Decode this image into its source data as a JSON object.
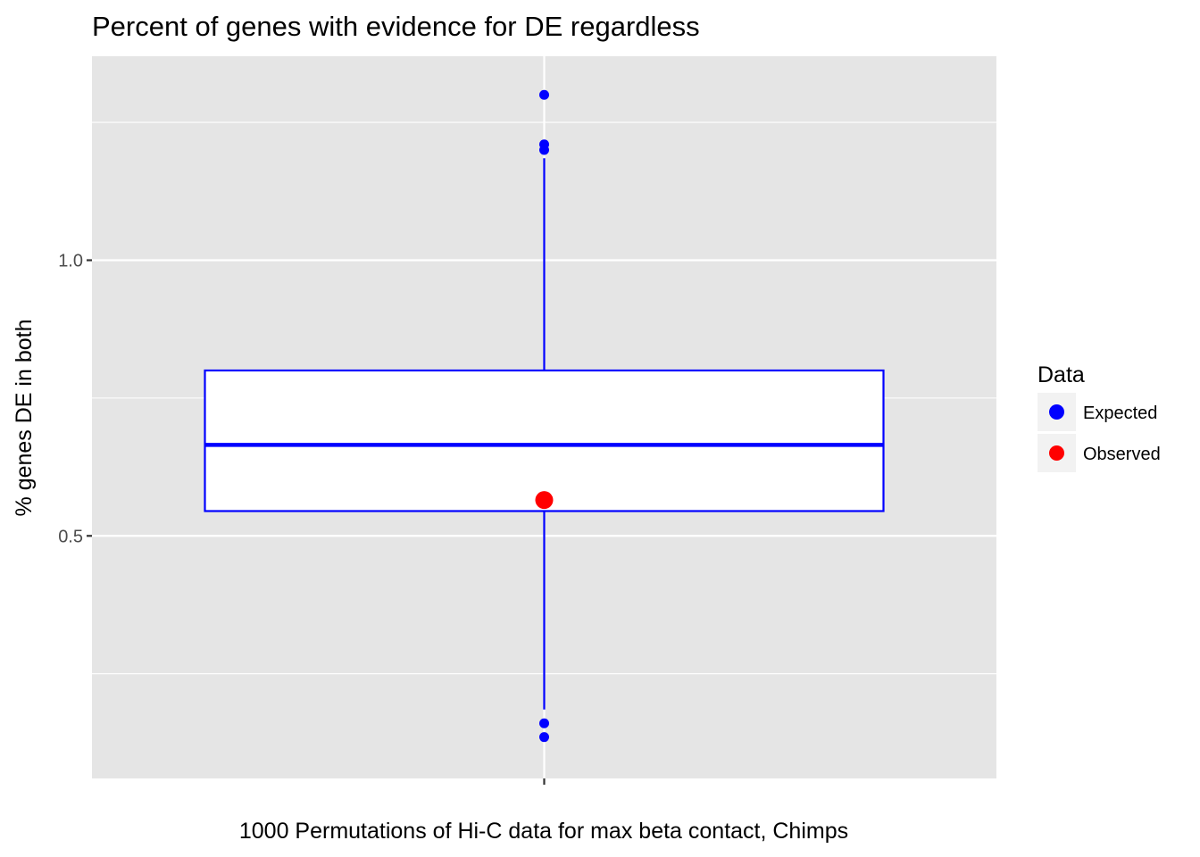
{
  "chart_data": {
    "type": "boxplot",
    "title": "Percent of genes with evidence for DE regardless",
    "xlabel": "1000 Permutations of Hi-C data for max beta contact, Chimps",
    "ylabel": "% genes DE in both",
    "categories": [
      ""
    ],
    "ylim": [
      0.06,
      1.37
    ],
    "y_ticks": [
      0.5,
      1.0
    ],
    "y_tick_labels": [
      "0.5",
      "1.0"
    ],
    "y_minor_gridlines": [
      0.25,
      0.75,
      1.25
    ],
    "grid": true,
    "legend": {
      "title": "Data",
      "position": "right",
      "entries": [
        {
          "label": "Expected",
          "color": "#0000FF"
        },
        {
          "label": "Observed",
          "color": "#FF0000"
        }
      ]
    },
    "series": [
      {
        "name": "Expected",
        "color": "#0000FF",
        "box": {
          "whisker_low": 0.185,
          "q1": 0.545,
          "median": 0.665,
          "q3": 0.8,
          "whisker_high": 1.185
        },
        "outliers": [
          1.3,
          1.21,
          1.2,
          0.16,
          0.135
        ]
      },
      {
        "name": "Observed",
        "color": "#FF0000",
        "points": [
          0.565
        ]
      }
    ]
  }
}
